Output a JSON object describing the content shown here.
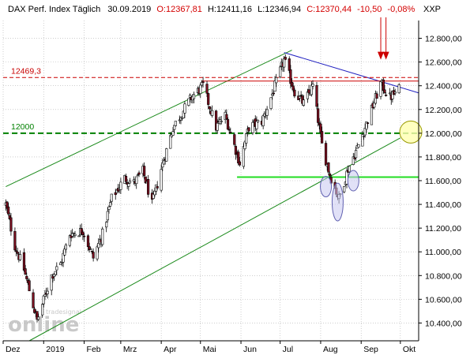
{
  "header": {
    "instrument": "DAX Perf. Index Täglich",
    "date": "30.09.2019",
    "open": "O:12367,81",
    "high": "H:12411,16",
    "low": "L:12346,94",
    "close": "C:12370,44",
    "change": "-10,50",
    "change_pct": "-0,08%",
    "axis_code": "XXP"
  },
  "watermark": {
    "main": "online",
    "small": "tradesignal"
  },
  "colors": {
    "candle_up": "#ffffff",
    "candle_down": "#7a1020",
    "channel": "#1a8a1a",
    "resistance": "#2020c0",
    "level_red": "#cc0000",
    "level_green": "#008000",
    "support": "#22dd22",
    "marker_arrow": "#cc0000",
    "highlight_circle": "#ffffb0"
  },
  "chart_data": {
    "type": "candlestick",
    "title": "DAX Perf. Index Täglich",
    "x_labels": [
      "Dez",
      "2019",
      "Feb",
      "Mrz",
      "Apr",
      "Mai",
      "Jun",
      "Jul",
      "Aug",
      "Sep",
      "Okt"
    ],
    "x_range": [
      "2018-12-01",
      "2019-10-15"
    ],
    "y_ticks": [
      "10.400,00",
      "10.600,00",
      "10.800,00",
      "11.000,00",
      "11.200,00",
      "11.400,00",
      "11.600,00",
      "11.800,00",
      "12.000,00",
      "12.200,00",
      "12.400,00",
      "12.600,00",
      "12.800,00"
    ],
    "y_tick_values": [
      10400,
      10600,
      10800,
      11000,
      11200,
      11400,
      11600,
      11800,
      12000,
      12200,
      12400,
      12600,
      12800
    ],
    "ylim": [
      10250,
      12950
    ],
    "levels": [
      {
        "label": "12469,3",
        "value": 12469.3,
        "color": "red",
        "style": "dashed"
      },
      {
        "label": "12000",
        "value": 12000,
        "color": "green",
        "style": "dashed"
      }
    ],
    "support_line": {
      "value": 11630,
      "from": "2019-05-29",
      "to": "2019-10-15"
    },
    "channel_upper": {
      "from": [
        "2018-12-03",
        11550
      ],
      "to": [
        "2019-07-10",
        12700
      ]
    },
    "channel_lower": {
      "from": [
        "2018-12-21",
        10250
      ],
      "to": [
        "2019-10-01",
        11960
      ]
    },
    "trendline": {
      "from": [
        "2019-07-04",
        12680
      ],
      "to": [
        "2019-10-15",
        12340
      ]
    },
    "anchor_points": [
      [
        "2018-12-03",
        11400
      ],
      [
        "2018-12-10",
        11050
      ],
      [
        "2018-12-17",
        10850
      ],
      [
        "2018-12-27",
        10420
      ],
      [
        "2019-01-07",
        10800
      ],
      [
        "2019-01-14",
        10900
      ],
      [
        "2019-01-21",
        11150
      ],
      [
        "2019-01-31",
        11180
      ],
      [
        "2019-02-08",
        10950
      ],
      [
        "2019-02-15",
        11150
      ],
      [
        "2019-02-22",
        11450
      ],
      [
        "2019-03-04",
        11620
      ],
      [
        "2019-03-11",
        11580
      ],
      [
        "2019-03-18",
        11680
      ],
      [
        "2019-03-25",
        11400
      ],
      [
        "2019-04-01",
        11700
      ],
      [
        "2019-04-10",
        12050
      ],
      [
        "2019-04-24",
        12300
      ],
      [
        "2019-05-03",
        12400
      ],
      [
        "2019-05-13",
        12050
      ],
      [
        "2019-05-20",
        12150
      ],
      [
        "2019-05-31",
        11750
      ],
      [
        "2019-06-07",
        12050
      ],
      [
        "2019-06-17",
        12100
      ],
      [
        "2019-06-24",
        12300
      ],
      [
        "2019-07-04",
        12620
      ],
      [
        "2019-07-12",
        12350
      ],
      [
        "2019-07-19",
        12250
      ],
      [
        "2019-07-26",
        12400
      ],
      [
        "2019-08-02",
        11900
      ],
      [
        "2019-08-08",
        11650
      ],
      [
        "2019-08-15",
        11450
      ],
      [
        "2019-08-22",
        11700
      ],
      [
        "2019-08-30",
        11900
      ],
      [
        "2019-09-09",
        12200
      ],
      [
        "2019-09-16",
        12420
      ],
      [
        "2019-09-23",
        12300
      ],
      [
        "2019-09-30",
        12370
      ]
    ],
    "annotations": [
      {
        "type": "arrow",
        "date": "2019-09-16"
      },
      {
        "type": "arrow",
        "date": "2019-09-20"
      },
      {
        "type": "ellipse",
        "date": "2019-08-05",
        "value": 11550
      },
      {
        "type": "ellipse",
        "date": "2019-08-14",
        "value": 11420
      },
      {
        "type": "ellipse",
        "date": "2019-08-26",
        "value": 11600
      },
      {
        "type": "circle",
        "date": "2019-10-09",
        "value": 12010
      }
    ]
  }
}
